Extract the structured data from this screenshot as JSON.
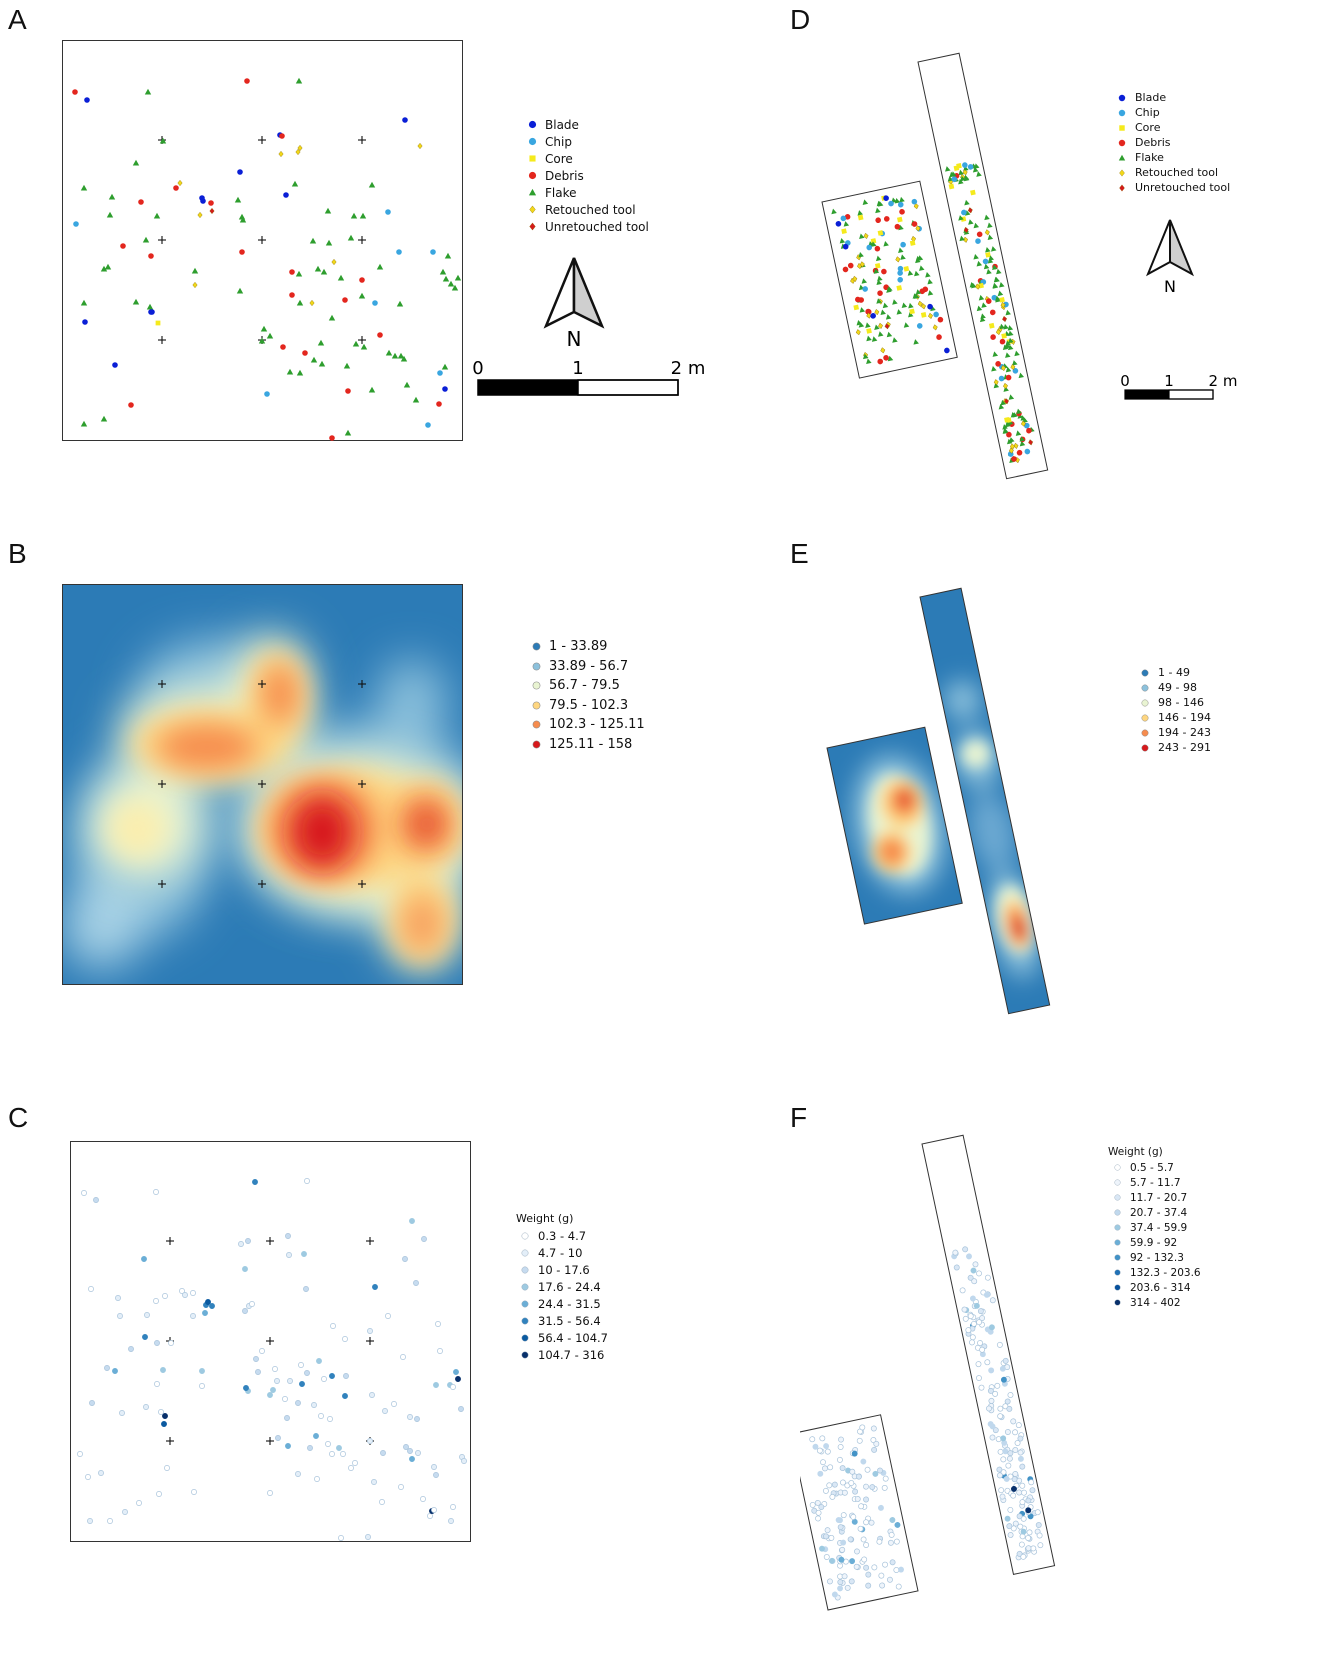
{
  "panels": {
    "a": {
      "letter": "A"
    },
    "b": {
      "letter": "B"
    },
    "c": {
      "letter": "C"
    },
    "d": {
      "letter": "D"
    },
    "e": {
      "letter": "E"
    },
    "f": {
      "letter": "F"
    }
  },
  "north_label": "N",
  "scale_a": {
    "labels": [
      "0",
      "1",
      "2 m"
    ]
  },
  "scale_d": {
    "labels": [
      "0",
      "1",
      "2 m"
    ]
  },
  "artifact_legend": [
    {
      "label": "Blade",
      "color": "#0a1fd6",
      "shape": "circle"
    },
    {
      "label": "Chip",
      "color": "#39a6e0",
      "shape": "circle"
    },
    {
      "label": "Core",
      "color": "#f5ea1c",
      "shape": "square"
    },
    {
      "label": "Debris",
      "color": "#e3261e",
      "shape": "circle"
    },
    {
      "label": "Flake",
      "color": "#2e9e2e",
      "shape": "triangle"
    },
    {
      "label": "Retouched tool",
      "color": "#f2d81a",
      "shape": "diamond"
    },
    {
      "label": "Unretouched tool",
      "color": "#d41a1a",
      "shape": "diamond"
    }
  ],
  "density_legend_b": [
    {
      "label": "1 - 33.89",
      "color": "#2c7bb6"
    },
    {
      "label": "33.89 - 56.7",
      "color": "#8cc1dc"
    },
    {
      "label": "56.7 - 79.5",
      "color": "#e9f4d2"
    },
    {
      "label": "79.5 - 102.3",
      "color": "#fed680"
    },
    {
      "label": "102.3 - 125.11",
      "color": "#f68c4e"
    },
    {
      "label": "125.11 - 158",
      "color": "#d7191c"
    }
  ],
  "density_legend_e": [
    {
      "label": "1 - 49",
      "color": "#2c7bb6"
    },
    {
      "label": "49 - 98",
      "color": "#8cc1dc"
    },
    {
      "label": "98 - 146",
      "color": "#e9f4d2"
    },
    {
      "label": "146 - 194",
      "color": "#fed680"
    },
    {
      "label": "194 - 243",
      "color": "#f68c4e"
    },
    {
      "label": "243 - 291",
      "color": "#d7191c"
    }
  ],
  "weight_legend_c": {
    "title": "Weight (g)",
    "classes": [
      {
        "label": "0.3 - 4.7",
        "color": "#ffffff"
      },
      {
        "label": "4.7 - 10",
        "color": "#e3eef8"
      },
      {
        "label": "10 - 17.6",
        "color": "#c6dbef"
      },
      {
        "label": "17.6 - 24.4",
        "color": "#9ecae1"
      },
      {
        "label": "24.4 - 31.5",
        "color": "#6baed6"
      },
      {
        "label": "31.5 - 56.4",
        "color": "#3182bd"
      },
      {
        "label": "56.4 - 104.7",
        "color": "#0b5aa0"
      },
      {
        "label": "104.7 - 316",
        "color": "#08306b"
      }
    ]
  },
  "weight_legend_f": {
    "title": "Weight (g)",
    "classes": [
      {
        "label": "0.5 - 5.7",
        "color": "#ffffff"
      },
      {
        "label": "5.7 - 11.7",
        "color": "#eef4fb"
      },
      {
        "label": "11.7 - 20.7",
        "color": "#d9e7f5"
      },
      {
        "label": "20.7 - 37.4",
        "color": "#c0d8ed"
      },
      {
        "label": "37.4 - 59.9",
        "color": "#9ecae1"
      },
      {
        "label": "59.9 - 92",
        "color": "#6baed6"
      },
      {
        "label": "92 - 132.3",
        "color": "#4292c6"
      },
      {
        "label": "132.3 - 203.6",
        "color": "#2171b5"
      },
      {
        "label": "203.6 - 314",
        "color": "#08519c"
      },
      {
        "label": "314 - 402",
        "color": "#08306b"
      }
    ]
  }
}
